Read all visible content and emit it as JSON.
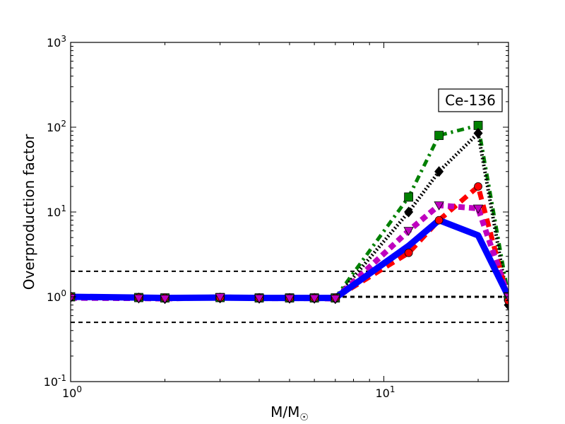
{
  "chart_data": {
    "type": "line",
    "xscale": "log",
    "yscale": "log",
    "xlim": [
      1,
      25
    ],
    "ylim": [
      0.1,
      1000
    ],
    "xlabel": "M/M☉",
    "ylabel": "Overproduction factor",
    "annotation": "Ce-136",
    "grid": false,
    "x_ticks": [
      {
        "value": 1,
        "base": "10",
        "exp": "0"
      },
      {
        "value": 10,
        "base": "10",
        "exp": "1"
      }
    ],
    "y_ticks": [
      {
        "value": 0.1,
        "base": "10",
        "exp": "-1"
      },
      {
        "value": 1,
        "base": "10",
        "exp": "0"
      },
      {
        "value": 10,
        "base": "10",
        "exp": "1"
      },
      {
        "value": 100,
        "base": "10",
        "exp": "2"
      },
      {
        "value": 1000,
        "base": "10",
        "exp": "3"
      }
    ],
    "reference_lines": [
      0.5,
      1,
      2
    ],
    "series": [
      {
        "color": "#008000",
        "dash": "10,6,3,6",
        "width": 5,
        "marker": "square",
        "x": [
          1,
          1.65,
          2,
          3,
          4,
          5,
          6,
          7,
          12,
          15,
          20,
          25
        ],
        "y": [
          1,
          0.98,
          0.97,
          0.98,
          0.97,
          0.97,
          0.97,
          0.97,
          15,
          80,
          105,
          1.0
        ]
      },
      {
        "color": "#000000",
        "dash": "2,3",
        "width": 5,
        "marker": "diamond",
        "x": [
          1,
          1.65,
          2,
          3,
          4,
          5,
          6,
          7,
          12,
          15,
          20,
          25
        ],
        "y": [
          1,
          0.97,
          0.95,
          0.97,
          0.96,
          0.96,
          0.96,
          0.95,
          10,
          30,
          85,
          0.8
        ]
      },
      {
        "color": "#ff0000",
        "dash": "12,8",
        "width": 7,
        "marker": "circle",
        "x": [
          1,
          1.65,
          2,
          3,
          4,
          5,
          6,
          7,
          12,
          15,
          20,
          25
        ],
        "y": [
          1,
          0.98,
          0.97,
          0.98,
          0.97,
          0.97,
          0.97,
          0.97,
          3.3,
          8,
          20,
          0.9
        ]
      },
      {
        "color": "#bf00bf",
        "dash": "9,6",
        "width": 8,
        "marker": "triangle-down",
        "x": [
          1,
          1.65,
          2,
          3,
          4,
          5,
          6,
          7,
          12,
          15,
          20,
          25
        ],
        "y": [
          0.97,
          0.96,
          0.95,
          0.99,
          0.96,
          0.96,
          0.96,
          0.95,
          6,
          12,
          11,
          1.0
        ]
      },
      {
        "color": "#0000ff",
        "dash": "",
        "width": 9,
        "marker": "none",
        "x": [
          1,
          1.65,
          2,
          3,
          4,
          5,
          6,
          7,
          12,
          15,
          20,
          25
        ],
        "y": [
          1,
          0.98,
          0.97,
          0.98,
          0.97,
          0.97,
          0.97,
          0.97,
          4,
          8,
          5.3,
          1.0
        ]
      }
    ]
  }
}
